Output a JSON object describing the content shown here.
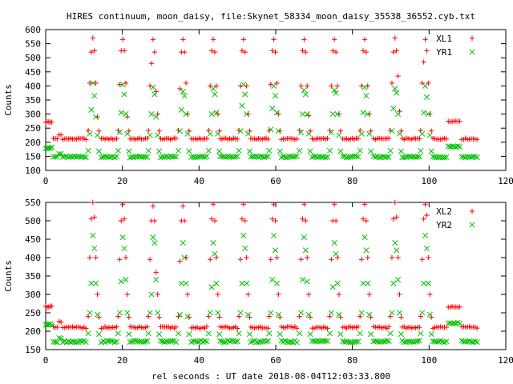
{
  "title": "HIRES continuum, moon_daisy, file:Skynet_58334_moon_daisy_35538_36552.cyb.txt",
  "xlabel_bottom": "rel seconds : UT date 2018-08-04T12:03:33.800",
  "colors": {
    "red": "#ff0000",
    "green": "#00c000"
  },
  "chart_data": [
    {
      "type": "scatter",
      "ylabel": "Counts",
      "xlim": [
        0,
        120
      ],
      "ylim": [
        100,
        600
      ],
      "xticks": [
        "0",
        "20",
        "40",
        "60",
        "80",
        "100",
        "120"
      ],
      "yticks": [
        "100",
        "150",
        "200",
        "250",
        "300",
        "350",
        "400",
        "450",
        "500",
        "550",
        "600"
      ],
      "legend": "top-right",
      "series": [
        {
          "name": "XL1",
          "marker": "plus",
          "color": "#ff0000",
          "baseline": 212,
          "offscan": 272,
          "offscan2": 275,
          "peaks": [
            {
              "x": 12.5,
              "vals": [
                410,
                520,
                570,
                525,
                410,
                290
              ]
            },
            {
              "x": 20.3,
              "vals": [
                405,
                525,
                565,
                525,
                410,
                290
              ]
            },
            {
              "x": 28.2,
              "vals": [
                400,
                480,
                565,
                520,
                380,
                300
              ]
            },
            {
              "x": 36.0,
              "vals": [
                390,
                520,
                565,
                520,
                410,
                300
              ]
            },
            {
              "x": 43.9,
              "vals": [
                400,
                525,
                565,
                520,
                400,
                300
              ]
            },
            {
              "x": 51.8,
              "vals": [
                400,
                525,
                565,
                520,
                400,
                300
              ]
            },
            {
              "x": 59.7,
              "vals": [
                405,
                525,
                565,
                520,
                410,
                300
              ]
            },
            {
              "x": 67.6,
              "vals": [
                400,
                525,
                565,
                520,
                400,
                295
              ]
            },
            {
              "x": 75.5,
              "vals": [
                400,
                525,
                565,
                520,
                400,
                300
              ]
            },
            {
              "x": 83.4,
              "vals": [
                400,
                525,
                565,
                520,
                400,
                300
              ]
            },
            {
              "x": 91.3,
              "vals": [
                410,
                520,
                570,
                525,
                435,
                310
              ]
            },
            {
              "x": 99.2,
              "vals": [
                410,
                485,
                565,
                525,
                410,
                300
              ]
            }
          ]
        },
        {
          "name": "YR1",
          "marker": "cross",
          "color": "#00c000",
          "baseline": 148,
          "offscan": 180,
          "offscan2": 185,
          "peaks": [
            {
              "x": 12.5,
              "vals": [
                230,
                315,
                410,
                365,
                290,
                225
              ]
            },
            {
              "x": 20.3,
              "vals": [
                235,
                305,
                405,
                370,
                300,
                230
              ]
            },
            {
              "x": 28.2,
              "vals": [
                225,
                300,
                395,
                370,
                290,
                225
              ]
            },
            {
              "x": 36.0,
              "vals": [
                240,
                315,
                380,
                365,
                300,
                230
              ]
            },
            {
              "x": 43.9,
              "vals": [
                230,
                300,
                390,
                370,
                305,
                230
              ]
            },
            {
              "x": 51.8,
              "vals": [
                240,
                330,
                405,
                370,
                300,
                230
              ]
            },
            {
              "x": 59.7,
              "vals": [
                245,
                320,
                400,
                365,
                305,
                240
              ]
            },
            {
              "x": 67.6,
              "vals": [
                235,
                300,
                385,
                370,
                300,
                230
              ]
            },
            {
              "x": 75.5,
              "vals": [
                235,
                300,
                385,
                375,
                300,
                225
              ]
            },
            {
              "x": 83.4,
              "vals": [
                230,
                305,
                395,
                365,
                300,
                230
              ]
            },
            {
              "x": 91.3,
              "vals": [
                240,
                320,
                390,
                375,
                300,
                230
              ]
            },
            {
              "x": 99.2,
              "vals": [
                230,
                305,
                400,
                360,
                300,
                225
              ]
            }
          ]
        }
      ]
    },
    {
      "type": "scatter",
      "ylabel": "Counts",
      "xlim": [
        0,
        120
      ],
      "ylim": [
        150,
        550
      ],
      "xticks": [
        "0",
        "20",
        "40",
        "60",
        "80",
        "100",
        "120"
      ],
      "yticks": [
        "150",
        "200",
        "250",
        "300",
        "350",
        "400",
        "450",
        "500",
        "550"
      ],
      "legend": "top-right",
      "series": [
        {
          "name": "XL2",
          "marker": "plus",
          "color": "#ff0000",
          "baseline": 210,
          "offscan": 267,
          "offscan2": 267,
          "peaks": [
            {
              "x": 12.5,
              "vals": [
                400,
                505,
                550,
                510,
                400,
                300
              ]
            },
            {
              "x": 20.3,
              "vals": [
                395,
                500,
                545,
                505,
                400,
                300
              ]
            },
            {
              "x": 28.2,
              "vals": [
                395,
                500,
                540,
                500,
                360,
                300
              ]
            },
            {
              "x": 36.0,
              "vals": [
                390,
                500,
                540,
                500,
                400,
                300
              ]
            },
            {
              "x": 43.9,
              "vals": [
                395,
                505,
                545,
                500,
                400,
                300
              ]
            },
            {
              "x": 51.8,
              "vals": [
                395,
                505,
                545,
                500,
                400,
                300
              ]
            },
            {
              "x": 59.7,
              "vals": [
                395,
                505,
                545,
                500,
                400,
                300
              ]
            },
            {
              "x": 67.6,
              "vals": [
                395,
                505,
                545,
                500,
                400,
                300
              ]
            },
            {
              "x": 75.5,
              "vals": [
                395,
                500,
                545,
                500,
                400,
                300
              ]
            },
            {
              "x": 83.4,
              "vals": [
                395,
                505,
                545,
                500,
                400,
                300
              ]
            },
            {
              "x": 91.3,
              "vals": [
                400,
                505,
                550,
                510,
                400,
                300
              ]
            },
            {
              "x": 99.2,
              "vals": [
                395,
                505,
                545,
                515,
                400,
                300
              ]
            }
          ]
        },
        {
          "name": "YR2",
          "marker": "cross",
          "color": "#00c000",
          "baseline": 172,
          "offscan": 218,
          "offscan2": 222,
          "peaks": [
            {
              "x": 12.5,
              "vals": [
                250,
                330,
                460,
                425,
                330,
                245
              ]
            },
            {
              "x": 20.3,
              "vals": [
                250,
                335,
                455,
                425,
                340,
                250
              ]
            },
            {
              "x": 28.2,
              "vals": [
                250,
                300,
                455,
                440,
                340,
                250
              ]
            },
            {
              "x": 36.0,
              "vals": [
                245,
                330,
                440,
                400,
                330,
                240
              ]
            },
            {
              "x": 43.9,
              "vals": [
                250,
                320,
                440,
                410,
                330,
                250
              ]
            },
            {
              "x": 51.8,
              "vals": [
                250,
                330,
                460,
                425,
                330,
                245
              ]
            },
            {
              "x": 59.7,
              "vals": [
                250,
                340,
                460,
                420,
                330,
                245
              ]
            },
            {
              "x": 67.6,
              "vals": [
                250,
                340,
                455,
                420,
                335,
                245
              ]
            },
            {
              "x": 75.5,
              "vals": [
                250,
                320,
                440,
                410,
                330,
                245
              ]
            },
            {
              "x": 83.4,
              "vals": [
                250,
                330,
                455,
                420,
                330,
                245
              ]
            },
            {
              "x": 91.3,
              "vals": [
                250,
                330,
                440,
                420,
                340,
                250
              ]
            },
            {
              "x": 99.2,
              "vals": [
                250,
                330,
                460,
                425,
                330,
                245
              ]
            }
          ]
        }
      ]
    }
  ]
}
